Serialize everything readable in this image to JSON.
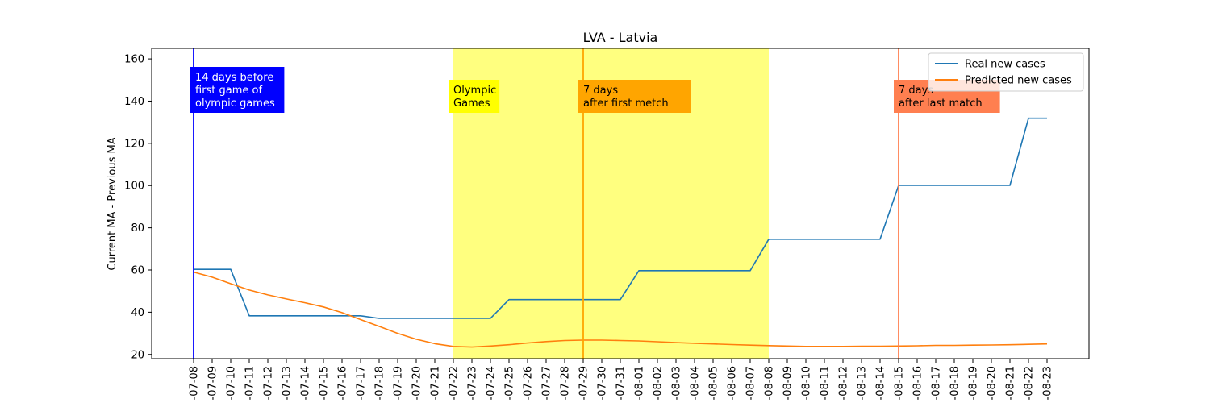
{
  "chart_data": {
    "type": "line",
    "title": "LVA - Latvia",
    "xlabel": "",
    "ylabel": "Current MA - Previous MA",
    "ylim": [
      18,
      165
    ],
    "yticks": [
      20,
      40,
      60,
      80,
      100,
      120,
      140,
      160
    ],
    "grid": false,
    "legend_position": "top-right",
    "x": [
      "2021-07-08",
      "2021-07-09",
      "2021-07-10",
      "2021-07-11",
      "2021-07-12",
      "2021-07-13",
      "2021-07-14",
      "2021-07-15",
      "2021-07-16",
      "2021-07-17",
      "2021-07-18",
      "2021-07-19",
      "2021-07-20",
      "2021-07-21",
      "2021-07-22",
      "2021-07-23",
      "2021-07-24",
      "2021-07-25",
      "2021-07-26",
      "2021-07-27",
      "2021-07-28",
      "2021-07-29",
      "2021-07-30",
      "2021-07-31",
      "2021-08-01",
      "2021-08-02",
      "2021-08-03",
      "2021-08-04",
      "2021-08-05",
      "2021-08-06",
      "2021-08-07",
      "2021-08-08",
      "2021-08-09",
      "2021-08-10",
      "2021-08-11",
      "2021-08-12",
      "2021-08-13",
      "2021-08-14",
      "2021-08-15",
      "2021-08-16",
      "2021-08-17",
      "2021-08-18",
      "2021-08-19",
      "2021-08-20",
      "2021-08-21",
      "2021-08-22",
      "2021-08-23"
    ],
    "tick_labels": [
      "-07-08",
      "-07-09",
      "-07-10",
      "-07-11",
      "-07-12",
      "-07-13",
      "-07-14",
      "-07-15",
      "-07-16",
      "-07-17",
      "-07-18",
      "-07-19",
      "-07-20",
      "-07-21",
      "-07-22",
      "-07-23",
      "-07-24",
      "-07-25",
      "-07-26",
      "-07-27",
      "-07-28",
      "-07-29",
      "-07-30",
      "-07-31",
      "-08-01",
      "-08-02",
      "-08-03",
      "-08-04",
      "-08-05",
      "-08-06",
      "-08-07",
      "-08-08",
      "-08-09",
      "-08-10",
      "-08-11",
      "-08-12",
      "-08-13",
      "-08-14",
      "-08-15",
      "-08-16",
      "-08-17",
      "-08-18",
      "-08-19",
      "-08-20",
      "-08-21",
      "-08-22",
      "-08-23"
    ],
    "series": [
      {
        "name": "Real new cases",
        "color": "#1f77b4",
        "values": [
          60.3,
          60.3,
          60.3,
          38.3,
          38.3,
          38.3,
          38.3,
          38.3,
          38.3,
          38.3,
          37.1,
          37.1,
          37.1,
          37.1,
          37.1,
          37.1,
          37.1,
          46,
          46,
          46,
          46,
          46,
          46,
          46,
          59.7,
          59.7,
          59.7,
          59.7,
          59.7,
          59.7,
          59.7,
          74.6,
          74.6,
          74.6,
          74.6,
          74.6,
          74.6,
          74.6,
          100.1,
          100.1,
          100.1,
          100.1,
          100.1,
          100.1,
          100.1,
          131.9,
          131.9
        ]
      },
      {
        "name": "Predicted new cases",
        "color": "#ff7f0e",
        "values": [
          59,
          56.6,
          53.5,
          50.5,
          48.2,
          46.3,
          44.5,
          42.5,
          39.8,
          36.5,
          33.3,
          30,
          27.2,
          25.1,
          23.8,
          23.5,
          24,
          24.6,
          25.4,
          26.1,
          26.6,
          26.8,
          26.8,
          26.6,
          26.4,
          26,
          25.6,
          25.3,
          25,
          24.7,
          24.4,
          24.2,
          24,
          23.8,
          23.8,
          23.8,
          23.9,
          23.9,
          24,
          24.1,
          24.3,
          24.3,
          24.4,
          24.5,
          24.6,
          24.8,
          25
        ]
      }
    ],
    "annotations": [
      {
        "kind": "vline",
        "at": "2021-07-08",
        "color": "#0000ff",
        "label": [
          "14 days before",
          "first game of",
          "olympic games"
        ],
        "box_color": "#0000ff",
        "text_color": "#ffffff"
      },
      {
        "kind": "span",
        "from": "2021-07-22",
        "to": "2021-08-08",
        "color": "#ffff00",
        "opacity": 0.5,
        "label": [
          "Olympic",
          "Games"
        ],
        "box_color": "#ffff00",
        "text_color": "#000000"
      },
      {
        "kind": "vline",
        "at": "2021-07-29",
        "color": "#ffa500",
        "label": [
          "7 days",
          "after first metch"
        ],
        "box_color": "#ffa500",
        "text_color": "#000000"
      },
      {
        "kind": "vline",
        "at": "2021-08-15",
        "color": "#ff7f50",
        "label": [
          "7 days",
          "after last match"
        ],
        "box_color": "#ff7f50",
        "text_color": "#000000"
      }
    ]
  }
}
